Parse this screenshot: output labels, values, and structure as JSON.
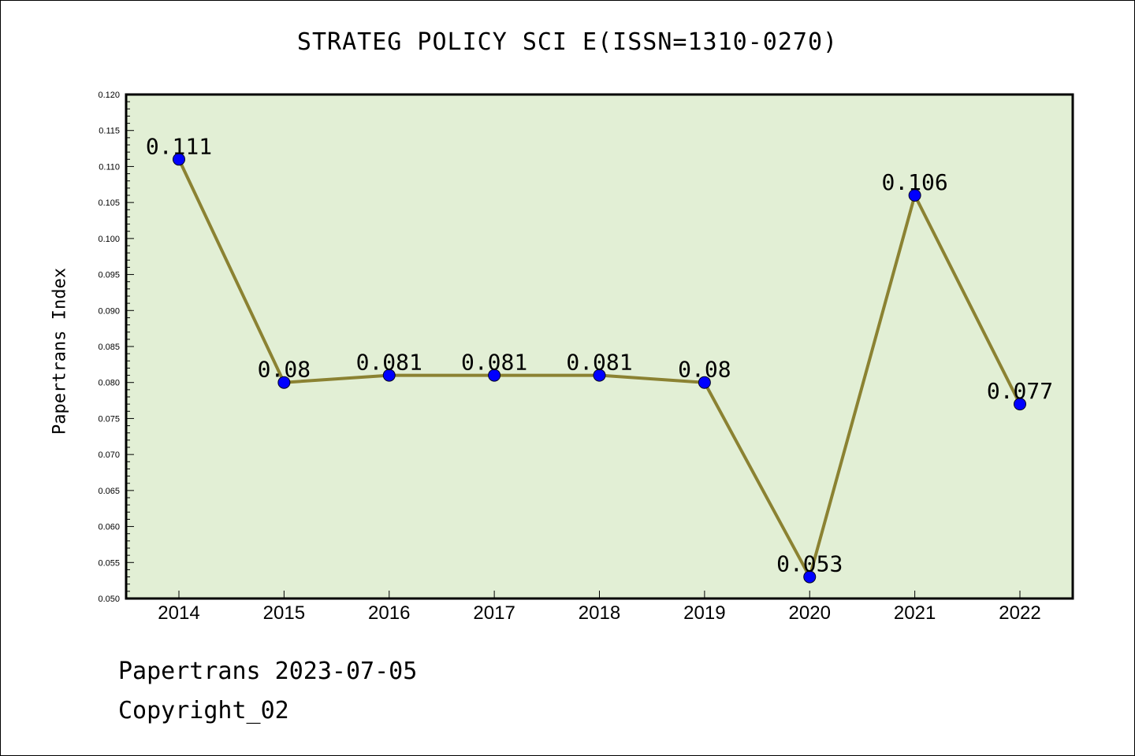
{
  "chart_data": {
    "type": "line",
    "title": "STRATEG POLICY SCI E(ISSN=1310-0270)",
    "xlabel": "",
    "ylabel": "Papertrans Index",
    "categories": [
      "2014",
      "2015",
      "2016",
      "2017",
      "2018",
      "2019",
      "2020",
      "2021",
      "2022"
    ],
    "values": [
      0.111,
      0.08,
      0.081,
      0.081,
      0.081,
      0.08,
      0.053,
      0.106,
      0.077
    ],
    "data_labels": [
      "0.111",
      "0.08",
      "0.081",
      "0.081",
      "0.081",
      "0.08",
      "0.053",
      "0.106",
      "0.077"
    ],
    "ylim": [
      0.05,
      0.12
    ],
    "yticks": [
      "0.050",
      "0.055",
      "0.060",
      "0.065",
      "0.070",
      "0.075",
      "0.080",
      "0.085",
      "0.090",
      "0.095",
      "0.100",
      "0.105",
      "0.110",
      "0.115",
      "0.120"
    ],
    "grid": false,
    "colors": {
      "plot_background": "#e2efd5",
      "line": "#8b8232",
      "marker": "#0000ff"
    }
  },
  "footer": {
    "line1": "Papertrans 2023-07-05",
    "line2": "Copyright_02"
  }
}
